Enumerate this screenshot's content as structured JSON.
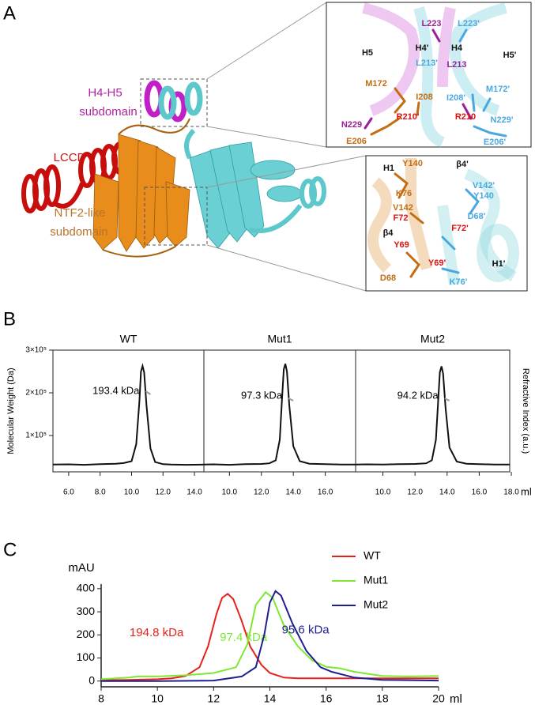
{
  "panel_labels": [
    "A",
    "B",
    "C"
  ],
  "structure": {
    "labels": [
      {
        "text": "H4-H5",
        "color": "#b0239f"
      },
      {
        "text": "subdomain",
        "color": "#b0239f"
      },
      {
        "text": "LCCD",
        "color": "#cc1111"
      },
      {
        "text": "NTF2-like",
        "color": "#b8732a"
      },
      {
        "text": "subdomain",
        "color": "#b8732a"
      },
      {
        "text": "L223",
        "color": "#9b1f9b"
      },
      {
        "text": "L223'",
        "color": "#4aa8e0"
      },
      {
        "text": "H4'",
        "color": "#111111"
      },
      {
        "text": "H4",
        "color": "#111111"
      },
      {
        "text": "H5",
        "color": "#111111"
      },
      {
        "text": "H5'",
        "color": "#111111"
      },
      {
        "text": "L213'",
        "color": "#4aa8e0"
      },
      {
        "text": "L213",
        "color": "#9b1f9b"
      },
      {
        "text": "M172",
        "color": "#c26d12"
      },
      {
        "text": "I208",
        "color": "#c26d12"
      },
      {
        "text": "I208'",
        "color": "#4aa8e0"
      },
      {
        "text": "M172'",
        "color": "#4aa8e0"
      },
      {
        "text": "R210'",
        "color": "#dd1111"
      },
      {
        "text": "R210",
        "color": "#dd1111"
      },
      {
        "text": "N229",
        "color": "#9b1f9b"
      },
      {
        "text": "N229'",
        "color": "#4aa8e0"
      },
      {
        "text": "E206",
        "color": "#c26d12"
      },
      {
        "text": "E206'",
        "color": "#4aa8e0"
      },
      {
        "text": "H1",
        "color": "#111111"
      },
      {
        "text": "Y140",
        "color": "#c26d12"
      },
      {
        "text": "β4'",
        "color": "#111111"
      },
      {
        "text": "K76",
        "color": "#c26d12"
      },
      {
        "text": "V142'",
        "color": "#4aa8e0"
      },
      {
        "text": "Y140",
        "color": "#4aa8e0"
      },
      {
        "text": "V142",
        "color": "#c26d12"
      },
      {
        "text": "F72",
        "color": "#dd1111"
      },
      {
        "text": "D68'",
        "color": "#4aa8e0"
      },
      {
        "text": "F72'",
        "color": "#dd1111"
      },
      {
        "text": "β4",
        "color": "#111111"
      },
      {
        "text": "Y69",
        "color": "#dd1111"
      },
      {
        "text": "Y69'",
        "color": "#dd1111"
      },
      {
        "text": "H1'",
        "color": "#111111"
      },
      {
        "text": "D68",
        "color": "#c26d12"
      },
      {
        "text": "K76'",
        "color": "#4aa8e0"
      }
    ]
  },
  "chart_data": [
    {
      "type": "line",
      "title": "WT",
      "ylabel": "Molecular Weight (Da)",
      "color": "#111111",
      "annotation": "193.4 kDa",
      "xlim": [
        5,
        14.6
      ],
      "xticks": [
        {
          "value": 6,
          "label": "6.0"
        },
        {
          "value": 8,
          "label": "8.0"
        },
        {
          "value": 10,
          "label": "10.0"
        },
        {
          "value": 12,
          "label": "12.0"
        },
        {
          "value": 14,
          "label": "14.0"
        }
      ],
      "ylim": [
        15000,
        300000
      ],
      "yticks": [
        {
          "value": 100000,
          "label": "1×10⁵"
        },
        {
          "value": 200000,
          "label": "2×10⁵"
        },
        {
          "value": 300000,
          "label": "3×10⁵"
        }
      ],
      "x": [
        5,
        6,
        7,
        8,
        9,
        9.5,
        10,
        10.3,
        10.5,
        10.6,
        10.7,
        10.8,
        10.95,
        11.2,
        11.5,
        12,
        12.5,
        13.5,
        14.6
      ],
      "values": [
        32000,
        32500,
        31500,
        33000,
        34000,
        35500,
        40000,
        80000,
        180000,
        250000,
        263000,
        248000,
        170000,
        70000,
        38000,
        33000,
        32000,
        31500,
        32000
      ]
    },
    {
      "type": "line",
      "title": "Mut1",
      "color": "#111111",
      "annotation": "97.3 kDa",
      "xlim": [
        8.4,
        17.9
      ],
      "xticks": [
        {
          "value": 10,
          "label": "10.0"
        },
        {
          "value": 12,
          "label": "12.0"
        },
        {
          "value": 14,
          "label": "14.0"
        },
        {
          "value": 16,
          "label": "16.0"
        }
      ],
      "ylim": [
        15000,
        300000
      ],
      "x": [
        8.4,
        9,
        10,
        11,
        12,
        12.5,
        12.9,
        13.15,
        13.3,
        13.4,
        13.5,
        13.6,
        13.75,
        14,
        14.4,
        15,
        16,
        17,
        17.9
      ],
      "values": [
        32000,
        32500,
        31500,
        33000,
        33500,
        35000,
        42000,
        90000,
        190000,
        255000,
        268000,
        250000,
        170000,
        75000,
        40000,
        34000,
        33000,
        32000,
        32000
      ]
    },
    {
      "type": "line",
      "title": "Mut2",
      "y2label": "Refractive Index (a.u.)",
      "xlabel": "ml",
      "color": "#111111",
      "annotation": "94.2 kDa",
      "xlim": [
        8.3,
        17.9
      ],
      "xticks": [
        {
          "value": 10,
          "label": "10.0"
        },
        {
          "value": 12,
          "label": "12.0"
        },
        {
          "value": 14,
          "label": "14.0"
        },
        {
          "value": 16,
          "label": "16.0"
        },
        {
          "value": 18,
          "label": "18.0"
        }
      ],
      "ylim": [
        15000,
        300000
      ],
      "x": [
        8.3,
        9,
        10,
        11,
        12,
        12.7,
        13.05,
        13.3,
        13.45,
        13.55,
        13.65,
        13.75,
        13.9,
        14.15,
        14.6,
        15.2,
        16,
        17,
        17.9
      ],
      "values": [
        32000,
        32500,
        32000,
        33000,
        33500,
        35000,
        42000,
        90000,
        185000,
        248000,
        262000,
        245000,
        165000,
        72000,
        39000,
        34000,
        33000,
        32000,
        32000
      ]
    },
    {
      "type": "line",
      "ylabel": "mAU",
      "xlabel": "ml",
      "legend": "upper right",
      "xlim": [
        8,
        20
      ],
      "xticks": [
        8,
        10,
        12,
        14,
        16,
        18,
        20
      ],
      "ylim": [
        -25,
        420
      ],
      "yticks": [
        0,
        100,
        200,
        300,
        400
      ],
      "series": [
        {
          "name": "WT",
          "color": "#e8211c",
          "annotation": "194.8 kDa",
          "x": [
            8,
            9,
            10,
            10.5,
            11,
            11.5,
            11.8,
            12.1,
            12.3,
            12.5,
            12.7,
            13,
            13.3,
            13.7,
            14,
            14.5,
            15,
            16,
            18,
            20
          ],
          "values": [
            3,
            5,
            8,
            12,
            22,
            60,
            150,
            290,
            360,
            378,
            355,
            260,
            150,
            70,
            35,
            15,
            12,
            12,
            12,
            12
          ]
        },
        {
          "name": "Mut1",
          "color": "#7ee832",
          "annotation": "97.4 kDa",
          "x": [
            8,
            9,
            9.3,
            10,
            11,
            12,
            12.8,
            13.2,
            13.5,
            13.85,
            14.1,
            14.5,
            15,
            15.5,
            16,
            16.5,
            17,
            18,
            19,
            20
          ],
          "values": [
            8,
            15,
            20,
            20,
            25,
            35,
            60,
            160,
            330,
            385,
            360,
            240,
            150,
            90,
            62,
            55,
            40,
            22,
            20,
            22
          ]
        },
        {
          "name": "Mut2",
          "color": "#1f1f8f",
          "annotation": "95.6 kDa",
          "x": [
            8,
            10,
            12,
            13,
            13.5,
            13.8,
            14,
            14.2,
            14.4,
            14.8,
            15.3,
            15.8,
            16.2,
            17,
            18,
            20
          ],
          "values": [
            0,
            0,
            2,
            20,
            60,
            200,
            340,
            390,
            370,
            250,
            130,
            60,
            40,
            15,
            5,
            2
          ]
        }
      ]
    }
  ]
}
